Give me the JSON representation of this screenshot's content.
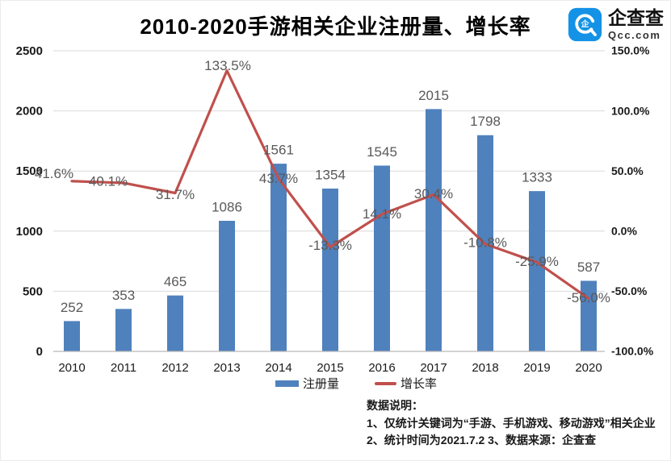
{
  "header": {
    "title": "2010-2020手游相关企业注册量、增长率",
    "logo": {
      "brand": "企查查",
      "domain": "Qcc.com",
      "mark_glyph": "企",
      "brand_color": "#1492e6"
    }
  },
  "chart_data": {
    "type": "bar+line",
    "title": "2010-2020手游相关企业注册量、增长率",
    "categories": [
      "2010",
      "2011",
      "2012",
      "2013",
      "2014",
      "2015",
      "2016",
      "2017",
      "2018",
      "2019",
      "2020"
    ],
    "series": [
      {
        "name": "注册量",
        "type": "bar",
        "axis": "left",
        "color": "#4f81bd",
        "values": [
          252,
          353,
          465,
          1086,
          1561,
          1354,
          1545,
          2015,
          1798,
          1333,
          587
        ],
        "value_labels": [
          "252",
          "353",
          "465",
          "1086",
          "1561",
          "1354",
          "1545",
          "2015",
          "1798",
          "1333",
          "587"
        ]
      },
      {
        "name": "增长率",
        "type": "line",
        "axis": "right",
        "color": "#c0504d",
        "values": [
          41.6,
          40.1,
          31.7,
          133.5,
          43.7,
          -13.3,
          14.1,
          30.4,
          -10.8,
          -25.9,
          -56.0
        ],
        "value_labels": [
          "41.6%",
          "40.1%",
          "31.7%",
          "133.5%",
          "43.7%",
          "-13.3%",
          "14.1%",
          "30.4%",
          "-10.8%",
          "-25.9%",
          "-56.0%"
        ]
      }
    ],
    "left_axis": {
      "min": 0,
      "max": 2500,
      "tick_values": [
        0,
        500,
        1000,
        1500,
        2000,
        2500
      ],
      "tick_labels": [
        "0",
        "500",
        "1000",
        "1500",
        "2000",
        "2500"
      ]
    },
    "right_axis": {
      "min": -100,
      "max": 150,
      "tick_values": [
        -100,
        -50,
        0,
        50,
        100,
        150
      ],
      "tick_labels": [
        "-100.0%",
        "-50.0%",
        "0.0%",
        "50.0%",
        "100.0%",
        "150.0%"
      ]
    },
    "grid": true,
    "legend_position": "bottom",
    "colors": {
      "grid": "#d9d9d9",
      "axis_line": "#b7b7b7",
      "data_label": "#595959",
      "tick_label": "#1a1a1a"
    }
  },
  "legend": {
    "items": [
      {
        "label": "注册量",
        "color": "#4f81bd",
        "type": "bar"
      },
      {
        "label": "增长率",
        "color": "#c0504d",
        "type": "line"
      }
    ]
  },
  "footnotes": {
    "heading": "数据说明：",
    "lines": [
      "1、仅统计关键词为“手游、手机游戏、移动游戏”相关企业",
      "2、统计时间为2021.7.2   3、数据来源：企查查"
    ]
  }
}
